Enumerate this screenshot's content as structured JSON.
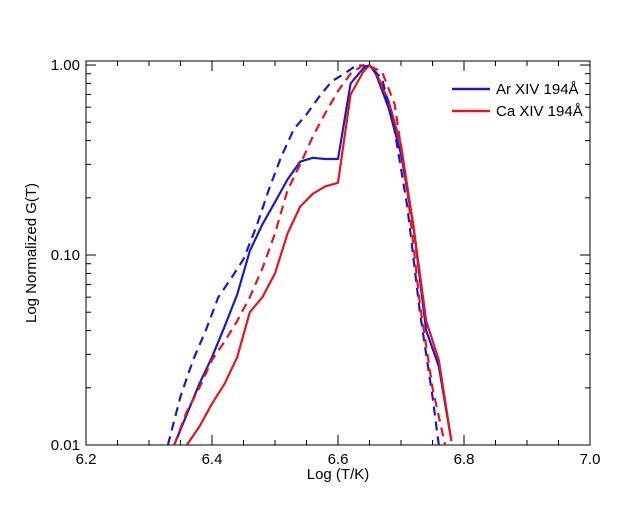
{
  "chart_data": {
    "type": "line",
    "title": "",
    "xlabel": "Log (T/K)",
    "ylabel": "Log Normalized G(T)",
    "xlim": [
      6.2,
      7.0
    ],
    "ylim": [
      0.01,
      1.05
    ],
    "yscale": "log",
    "x_ticks": [
      "6.2",
      "6.4",
      "6.6",
      "6.8",
      "7.0"
    ],
    "x_tick_values": [
      6.2,
      6.4,
      6.6,
      6.8,
      7.0
    ],
    "y_ticks": [
      "0.01",
      "0.10",
      "1.00"
    ],
    "y_tick_values": [
      0.01,
      0.1,
      1.0
    ],
    "legend": {
      "placement": "top-right"
    },
    "series": [
      {
        "name": "Ar XIV 194Å",
        "color": "#1a1acc",
        "style": "solid",
        "in_legend": true,
        "x": [
          6.34,
          6.36,
          6.38,
          6.4,
          6.42,
          6.44,
          6.46,
          6.48,
          6.5,
          6.52,
          6.54,
          6.56,
          6.58,
          6.6,
          6.62,
          6.64,
          6.65,
          6.66,
          6.68,
          6.7,
          6.72,
          6.74,
          6.76,
          6.78
        ],
        "y": [
          0.01,
          0.0145,
          0.021,
          0.029,
          0.042,
          0.062,
          0.105,
          0.145,
          0.19,
          0.25,
          0.31,
          0.325,
          0.32,
          0.32,
          0.8,
          0.96,
          1.0,
          0.9,
          0.6,
          0.34,
          0.14,
          0.04,
          0.026,
          0.0105
        ]
      },
      {
        "name": "Ca XIV 194Å",
        "color": "#e8141e",
        "style": "solid",
        "in_legend": true,
        "x": [
          6.36,
          6.38,
          6.4,
          6.42,
          6.44,
          6.46,
          6.48,
          6.5,
          6.52,
          6.54,
          6.56,
          6.58,
          6.6,
          6.62,
          6.64,
          6.65,
          6.66,
          6.68,
          6.7,
          6.72,
          6.74,
          6.76,
          6.78
        ],
        "y": [
          0.01,
          0.0125,
          0.0165,
          0.021,
          0.029,
          0.05,
          0.06,
          0.08,
          0.13,
          0.18,
          0.21,
          0.23,
          0.24,
          0.7,
          0.92,
          1.0,
          0.92,
          0.65,
          0.38,
          0.14,
          0.045,
          0.028,
          0.0105
        ]
      },
      {
        "name": "Ar XIV 194Å (dashed)",
        "color": "#1a1acc",
        "style": "dashed",
        "in_legend": false,
        "x": [
          6.33,
          6.35,
          6.37,
          6.39,
          6.41,
          6.43,
          6.45,
          6.47,
          6.49,
          6.51,
          6.53,
          6.55,
          6.57,
          6.59,
          6.61,
          6.63,
          6.65,
          6.67,
          6.69,
          6.71,
          6.73,
          6.75,
          6.76
        ],
        "y": [
          0.01,
          0.018,
          0.028,
          0.04,
          0.06,
          0.075,
          0.095,
          0.14,
          0.22,
          0.33,
          0.46,
          0.55,
          0.68,
          0.82,
          0.9,
          1.0,
          0.98,
          0.85,
          0.45,
          0.18,
          0.05,
          0.018,
          0.01
        ]
      },
      {
        "name": "Ca XIV 194Å (dashed)",
        "color": "#e8141e",
        "style": "dashed",
        "in_legend": false,
        "x": [
          6.34,
          6.36,
          6.38,
          6.4,
          6.42,
          6.44,
          6.46,
          6.48,
          6.5,
          6.52,
          6.54,
          6.56,
          6.58,
          6.6,
          6.62,
          6.64,
          6.65,
          6.67,
          6.69,
          6.71,
          6.73,
          6.75,
          6.77
        ],
        "y": [
          0.01,
          0.015,
          0.02,
          0.028,
          0.035,
          0.045,
          0.06,
          0.085,
          0.13,
          0.22,
          0.3,
          0.42,
          0.56,
          0.73,
          0.9,
          1.0,
          0.99,
          0.92,
          0.62,
          0.22,
          0.055,
          0.02,
          0.01
        ]
      }
    ]
  }
}
